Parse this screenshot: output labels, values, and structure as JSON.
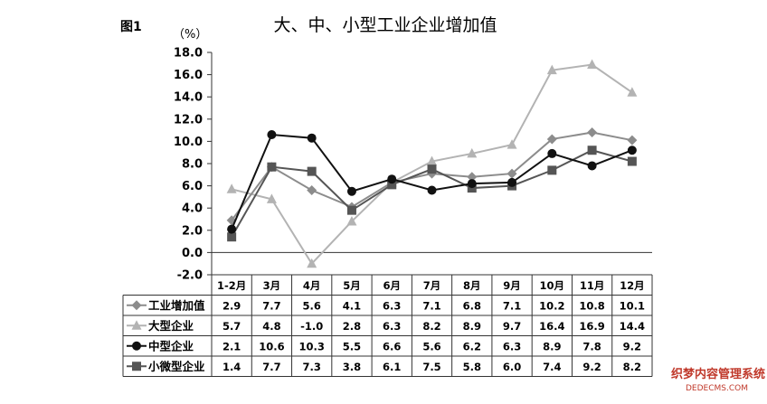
{
  "figure_label": "图1",
  "watermark": {
    "line1": "织梦内容管理系统",
    "line2": "DEDECMS.COM"
  },
  "chart_data": {
    "type": "line",
    "title": "大、中、小型工业企业增加值",
    "unit": "（%）",
    "ylim": [
      -2.0,
      18.0
    ],
    "ytick_step": 2.0,
    "yticks": [
      "18.0",
      "16.0",
      "14.0",
      "12.0",
      "10.0",
      "8.0",
      "6.0",
      "4.0",
      "2.0",
      "0.0",
      "-2.0"
    ],
    "grid": false,
    "categories": [
      "1-2月",
      "3月",
      "4月",
      "5月",
      "6月",
      "7月",
      "8月",
      "9月",
      "10月",
      "11月",
      "12月"
    ],
    "series": [
      {
        "name": "工业增加值",
        "marker": "diamond",
        "color": "#8c8c8c",
        "values": [
          2.9,
          7.7,
          5.6,
          4.1,
          6.3,
          7.1,
          6.8,
          7.1,
          10.2,
          10.8,
          10.1
        ],
        "labels": [
          "2.9",
          "7.7",
          "5.6",
          "4.1",
          "6.3",
          "7.1",
          "6.8",
          "7.1",
          "10.2",
          "10.8",
          "10.1"
        ]
      },
      {
        "name": "大型企业",
        "marker": "triangle",
        "color": "#b3b3b3",
        "values": [
          5.7,
          4.8,
          -1.0,
          2.8,
          6.3,
          8.2,
          8.9,
          9.7,
          16.4,
          16.9,
          14.4
        ],
        "labels": [
          "5.7",
          "4.8",
          "-1.0",
          "2.8",
          "6.3",
          "8.2",
          "8.9",
          "9.7",
          "16.4",
          "16.9",
          "14.4"
        ]
      },
      {
        "name": "中型企业",
        "marker": "circle",
        "color": "#111111",
        "values": [
          2.1,
          10.6,
          10.3,
          5.5,
          6.6,
          5.6,
          6.2,
          6.3,
          8.9,
          7.8,
          9.2
        ],
        "labels": [
          "2.1",
          "10.6",
          "10.3",
          "5.5",
          "6.6",
          "5.6",
          "6.2",
          "6.3",
          "8.9",
          "7.8",
          "9.2"
        ]
      },
      {
        "name": "小微型企业",
        "marker": "square",
        "color": "#555555",
        "values": [
          1.4,
          7.7,
          7.3,
          3.8,
          6.1,
          7.5,
          5.8,
          6.0,
          7.4,
          9.2,
          8.2
        ],
        "labels": [
          "1.4",
          "7.7",
          "7.3",
          "3.8",
          "6.1",
          "7.5",
          "5.8",
          "6.0",
          "7.4",
          "9.2",
          "8.2"
        ]
      }
    ],
    "legend": "data-table"
  }
}
